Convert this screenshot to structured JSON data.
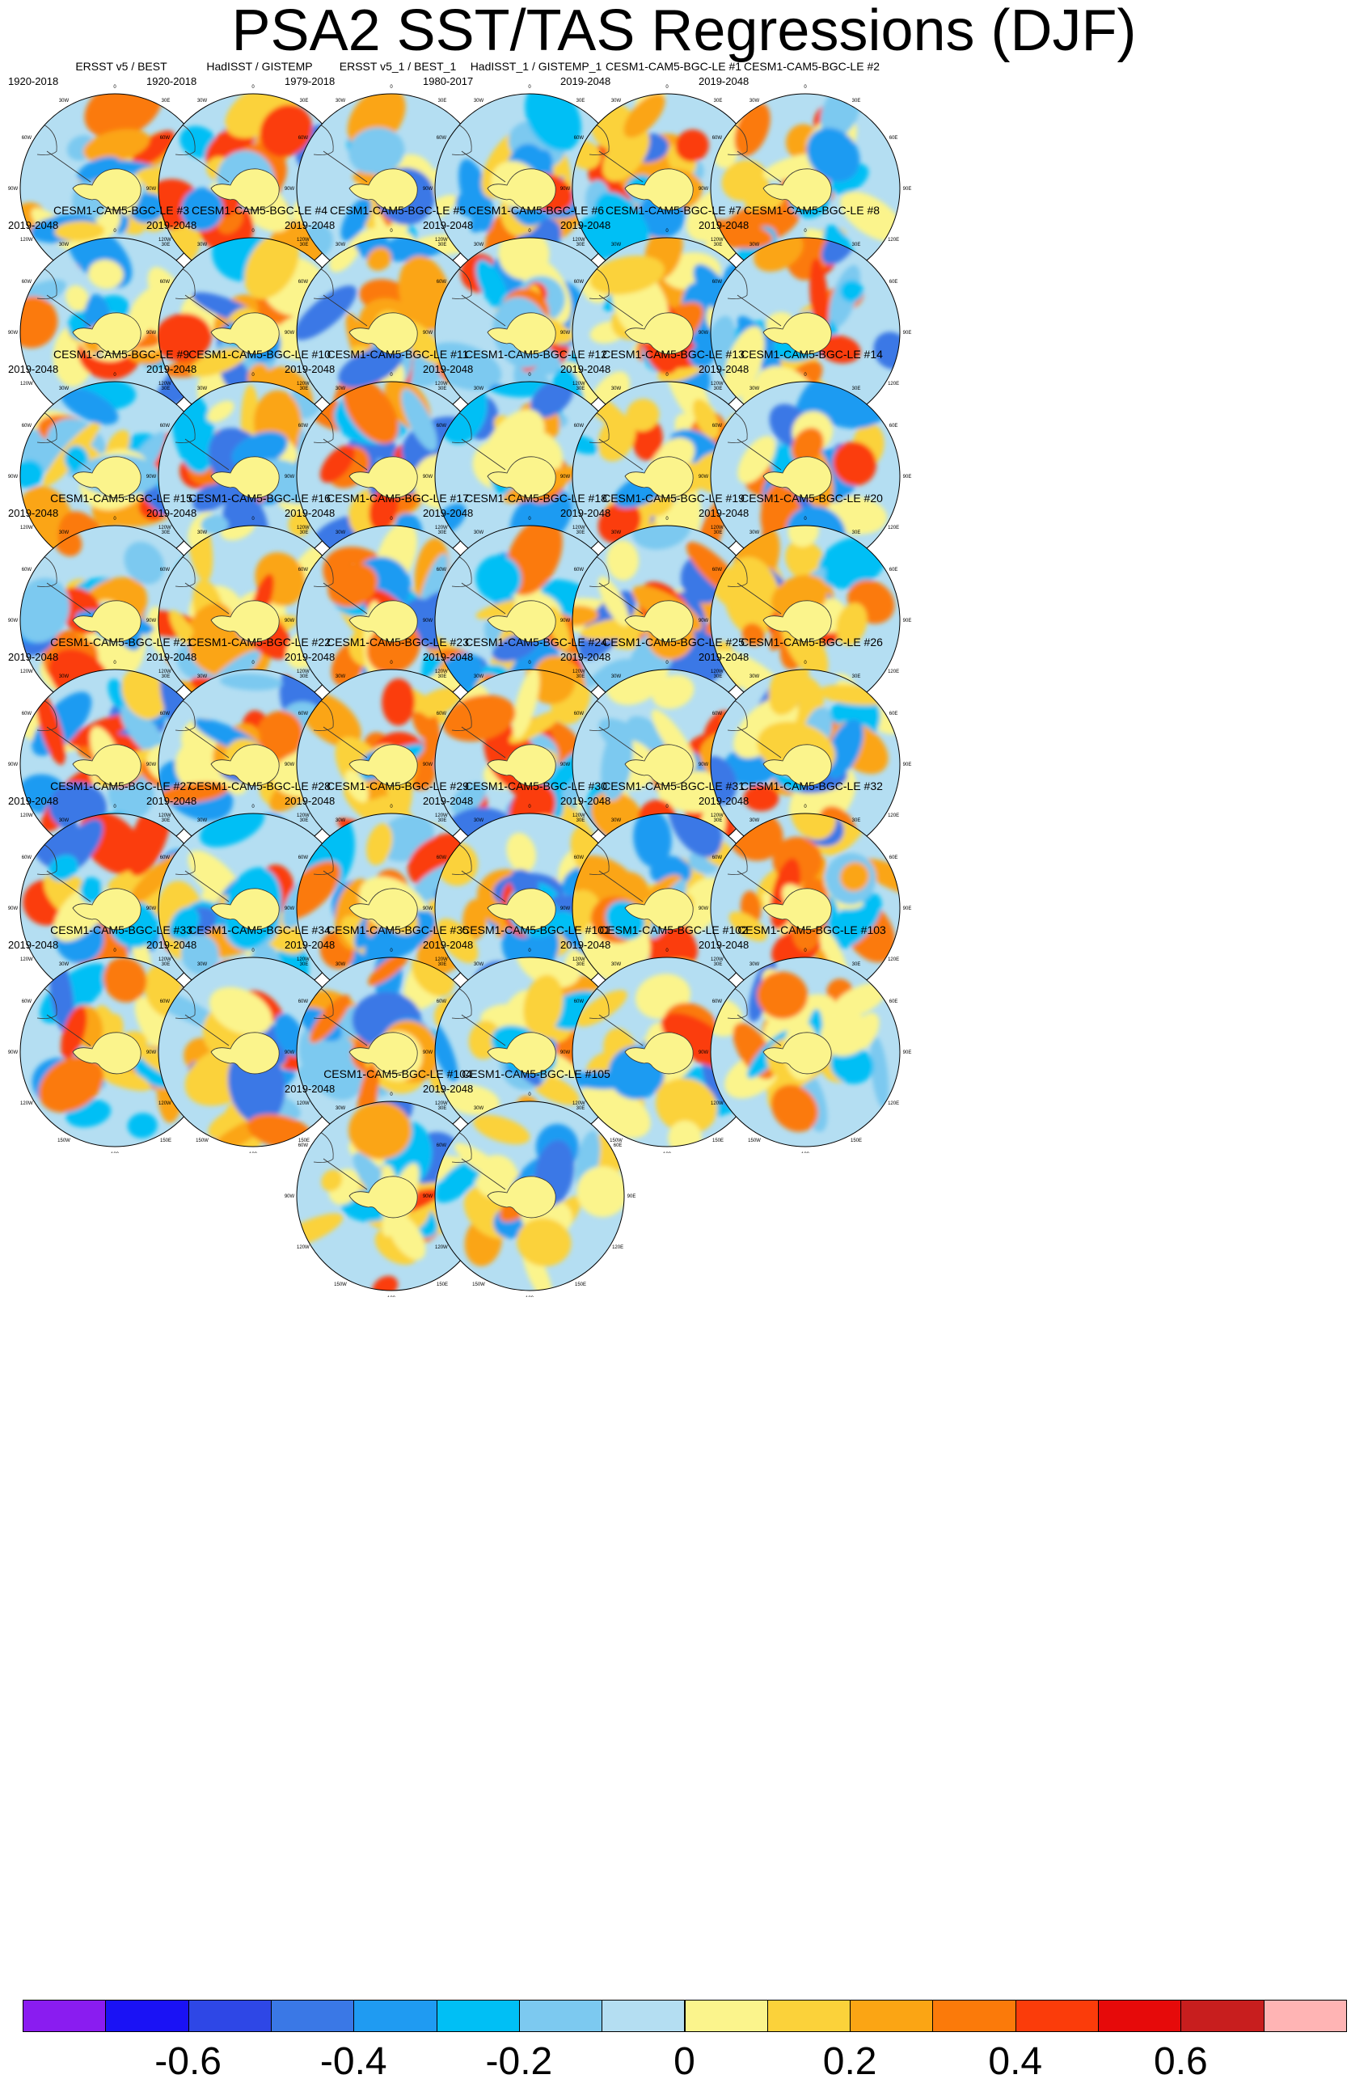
{
  "title": "PSA2 SST/TAS Regressions (DJF)",
  "map_labels": {
    "top": "0",
    "ne": "30E",
    "e1": "60E",
    "e": "90E",
    "se1": "120E",
    "se": "150E",
    "bottom": "180",
    "sw": "150W",
    "sw1": "120W",
    "w": "90W",
    "nw1": "60W",
    "nw": "30W"
  },
  "panels": [
    {
      "title": "ERSST v5 / BEST",
      "period": "1920-2018"
    },
    {
      "title": "HadISST / GISTEMP",
      "period": "1920-2018"
    },
    {
      "title": "ERSST v5_1 / BEST_1",
      "period": "1979-2018"
    },
    {
      "title": "HadISST_1 / GISTEMP_1",
      "period": "1980-2017"
    },
    {
      "title": "CESM1-CAM5-BGC-LE #1",
      "period": "2019-2048"
    },
    {
      "title": "CESM1-CAM5-BGC-LE #2",
      "period": "2019-2048"
    },
    {
      "title": "CESM1-CAM5-BGC-LE #3",
      "period": "2019-2048"
    },
    {
      "title": "CESM1-CAM5-BGC-LE #4",
      "period": "2019-2048"
    },
    {
      "title": "CESM1-CAM5-BGC-LE #5",
      "period": "2019-2048"
    },
    {
      "title": "CESM1-CAM5-BGC-LE #6",
      "period": "2019-2048"
    },
    {
      "title": "CESM1-CAM5-BGC-LE #7",
      "period": "2019-2048"
    },
    {
      "title": "CESM1-CAM5-BGC-LE #8",
      "period": "2019-2048"
    },
    {
      "title": "CESM1-CAM5-BGC-LE #9",
      "period": "2019-2048"
    },
    {
      "title": "CESM1-CAM5-BGC-LE #10",
      "period": "2019-2048"
    },
    {
      "title": "CESM1-CAM5-BGC-LE #11",
      "period": "2019-2048"
    },
    {
      "title": "CESM1-CAM5-BGC-LE #12",
      "period": "2019-2048"
    },
    {
      "title": "CESM1-CAM5-BGC-LE #13",
      "period": "2019-2048"
    },
    {
      "title": "CESM1-CAM5-BGC-LE #14",
      "period": "2019-2048"
    },
    {
      "title": "CESM1-CAM5-BGC-LE #15",
      "period": "2019-2048"
    },
    {
      "title": "CESM1-CAM5-BGC-LE #16",
      "period": "2019-2048"
    },
    {
      "title": "CESM1-CAM5-BGC-LE #17",
      "period": "2019-2048"
    },
    {
      "title": "CESM1-CAM5-BGC-LE #18",
      "period": "2019-2048"
    },
    {
      "title": "CESM1-CAM5-BGC-LE #19",
      "period": "2019-2048"
    },
    {
      "title": "CESM1-CAM5-BGC-LE #20",
      "period": "2019-2048"
    },
    {
      "title": "CESM1-CAM5-BGC-LE #21",
      "period": "2019-2048"
    },
    {
      "title": "CESM1-CAM5-BGC-LE #22",
      "period": "2019-2048"
    },
    {
      "title": "CESM1-CAM5-BGC-LE #23",
      "period": "2019-2048"
    },
    {
      "title": "CESM1-CAM5-BGC-LE #24",
      "period": "2019-2048"
    },
    {
      "title": "CESM1-CAM5-BGC-LE #25",
      "period": "2019-2048"
    },
    {
      "title": "CESM1-CAM5-BGC-LE #26",
      "period": "2019-2048"
    },
    {
      "title": "CESM1-CAM5-BGC-LE #27",
      "period": "2019-2048"
    },
    {
      "title": "CESM1-CAM5-BGC-LE #28",
      "period": "2019-2048"
    },
    {
      "title": "CESM1-CAM5-BGC-LE #29",
      "period": "2019-2048"
    },
    {
      "title": "CESM1-CAM5-BGC-LE #30",
      "period": "2019-2048"
    },
    {
      "title": "CESM1-CAM5-BGC-LE #31",
      "period": "2019-2048"
    },
    {
      "title": "CESM1-CAM5-BGC-LE #32",
      "period": "2019-2048"
    },
    {
      "title": "CESM1-CAM5-BGC-LE #33",
      "period": "2019-2048"
    },
    {
      "title": "CESM1-CAM5-BGC-LE #34",
      "period": "2019-2048"
    },
    {
      "title": "CESM1-CAM5-BGC-LE #35",
      "period": "2019-2048"
    },
    {
      "title": "CESM1-CAM5-BGC-LE #101",
      "period": "2019-2048"
    },
    {
      "title": "CESM1-CAM5-BGC-LE #102",
      "period": "2019-2048"
    },
    {
      "title": "CESM1-CAM5-BGC-LE #103",
      "period": "2019-2048"
    },
    {
      "title": "CESM1-CAM5-BGC-LE #104",
      "period": "2019-2048"
    },
    {
      "title": "CESM1-CAM5-BGC-LE #105",
      "period": "2019-2048"
    }
  ],
  "colorbar": {
    "colors": [
      "#8a1cf0",
      "#1a12f5",
      "#2e47e6",
      "#3a78e6",
      "#1f9bf2",
      "#00bff5",
      "#7cc9f0",
      "#b4def2",
      "#fbf48c",
      "#fbd23a",
      "#fba514",
      "#fb7a0a",
      "#fb3c0a",
      "#e60a0a",
      "#c81e1e",
      "#ffb4b4"
    ],
    "labels": [
      "-0.6",
      "-0.4",
      "-0.2",
      "0",
      "0.2",
      "0.4",
      "0.6"
    ]
  }
}
